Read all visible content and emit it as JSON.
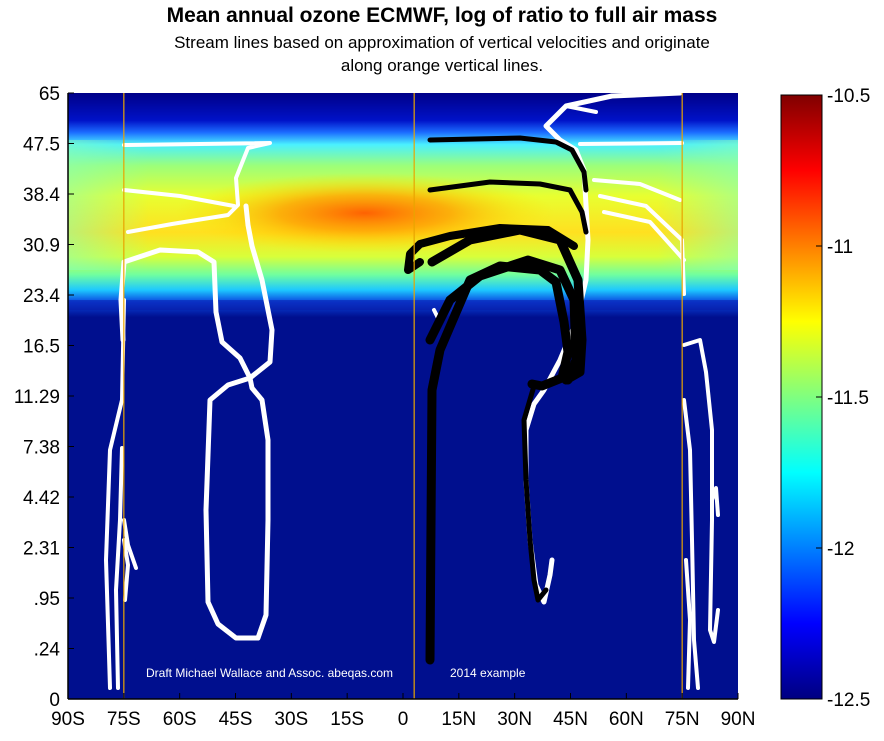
{
  "chart_data": {
    "type": "heatmap",
    "title": "Mean annual ozone ECMWF, log of ratio to full air mass",
    "subtitle_lines": [
      "Stream lines based on approximation of vertical velocities and originate",
      "along orange vertical lines."
    ],
    "x_tick_labels": [
      "90S",
      "75S",
      "60S",
      "45S",
      "30S",
      "15S",
      "0",
      "15N",
      "30N",
      "45N",
      "60N",
      "75N",
      "90N"
    ],
    "x_ticks": [
      -90,
      -75,
      -60,
      -45,
      -30,
      -15,
      0,
      15,
      30,
      45,
      60,
      75,
      90
    ],
    "xlim": [
      -90,
      90
    ],
    "y_tick_labels": [
      "65",
      "47.5",
      "38.4",
      "30.9",
      "23.4",
      "16.5",
      "11.29",
      "7.38",
      "4.42",
      "2.31",
      ".95",
      ".24",
      "0"
    ],
    "colorbar": {
      "min": -12.5,
      "max": -10.5,
      "tick_labels": [
        "-10.5",
        "-11",
        "-11.5",
        "-12",
        "-12.5"
      ],
      "ticks": [
        -10.5,
        -11,
        -11.5,
        -12,
        -12.5
      ],
      "colormap": "jet"
    },
    "seed_latitudes": [
      -75,
      3,
      75
    ],
    "seed_line_color": "#e8a400",
    "grid": false,
    "annotations": [
      "Draft Michael Wallace and Assoc. abeqas.com",
      "2014 example"
    ]
  }
}
